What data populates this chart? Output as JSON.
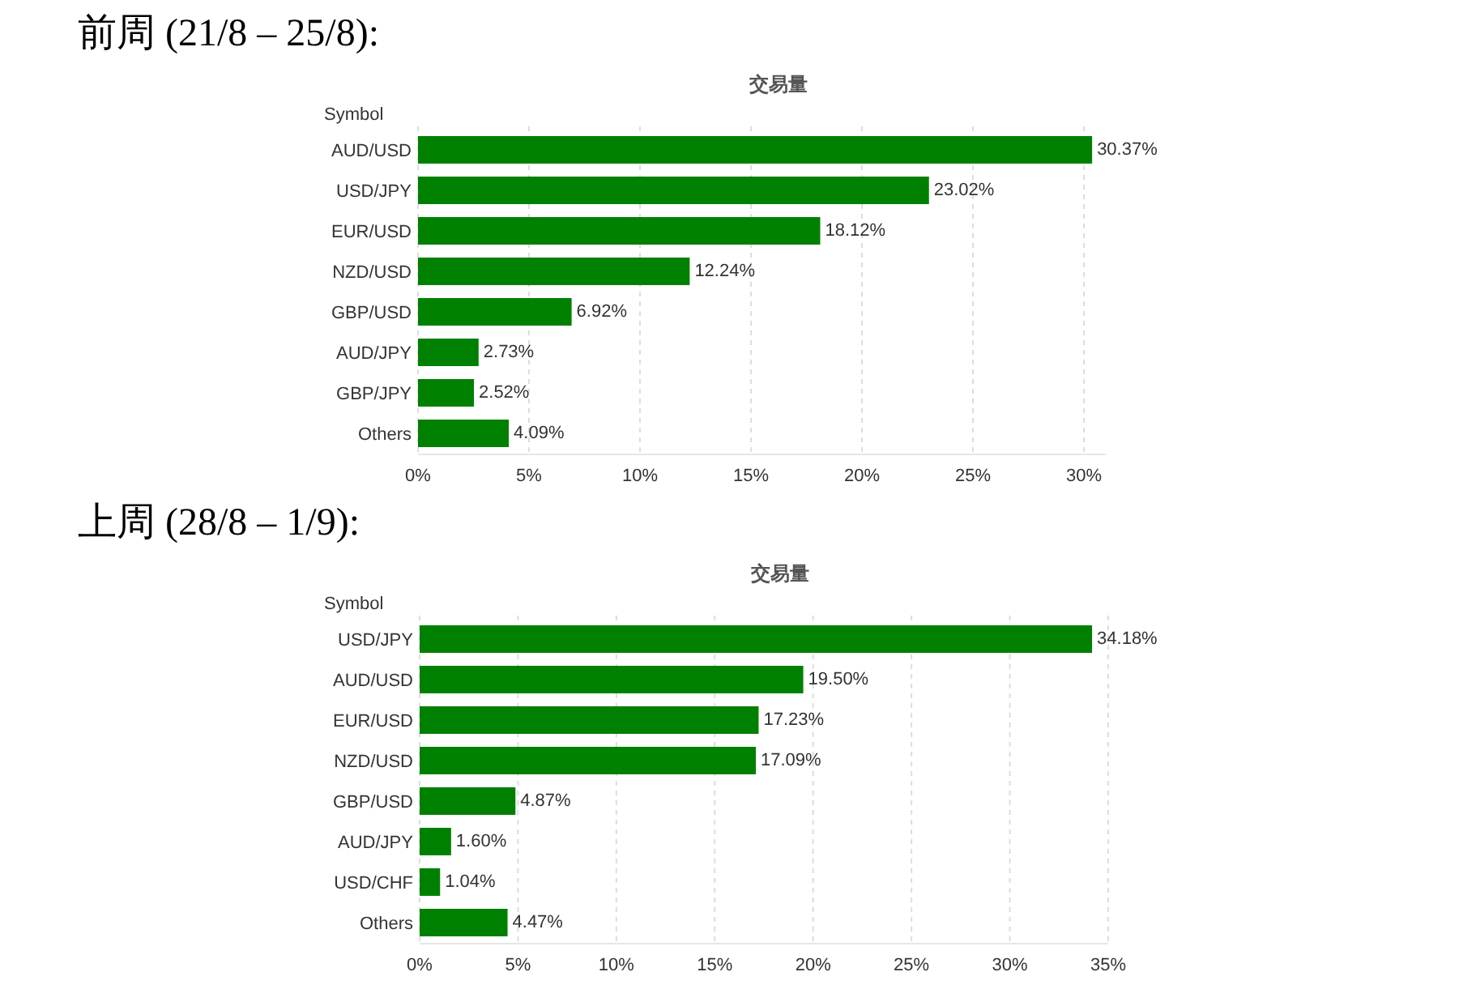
{
  "chart_data": [
    {
      "type": "bar",
      "orientation": "horizontal",
      "title": "前周 (21/8 – 25/8):",
      "subtitle": "交易量",
      "ylabel": "Symbol",
      "categories": [
        "AUD/USD",
        "USD/JPY",
        "EUR/USD",
        "NZD/USD",
        "GBP/USD",
        "AUD/JPY",
        "GBP/JPY",
        "Others"
      ],
      "values": [
        30.37,
        23.02,
        18.12,
        12.24,
        6.92,
        2.73,
        2.52,
        4.09
      ],
      "value_labels": [
        "30.37%",
        "23.02%",
        "18.12%",
        "12.24%",
        "6.92%",
        "2.73%",
        "2.52%",
        "4.09%"
      ],
      "color": "#008000",
      "xlim": [
        0,
        31
      ],
      "xticks": [
        {
          "value": 0,
          "label": "0%"
        },
        {
          "value": 5,
          "label": "5%"
        },
        {
          "value": 10,
          "label": "10%"
        },
        {
          "value": 15,
          "label": "15%"
        },
        {
          "value": 20,
          "label": "20%"
        },
        {
          "value": 25,
          "label": "25%"
        },
        {
          "value": 30,
          "label": "30%"
        }
      ],
      "grid": "x"
    },
    {
      "type": "bar",
      "orientation": "horizontal",
      "title": "上周 (28/8 – 1/9):",
      "subtitle": "交易量",
      "ylabel": "Symbol",
      "categories": [
        "USD/JPY",
        "AUD/USD",
        "EUR/USD",
        "NZD/USD",
        "GBP/USD",
        "AUD/JPY",
        "USD/CHF",
        "Others"
      ],
      "values": [
        34.18,
        19.5,
        17.23,
        17.09,
        4.87,
        1.6,
        1.04,
        4.47
      ],
      "value_labels": [
        "34.18%",
        "19.50%",
        "17.23%",
        "17.09%",
        "4.87%",
        "1.60%",
        "1.04%",
        "4.47%"
      ],
      "color": "#008000",
      "xlim": [
        0,
        35
      ],
      "xticks": [
        {
          "value": 0,
          "label": "0%"
        },
        {
          "value": 5,
          "label": "5%"
        },
        {
          "value": 10,
          "label": "10%"
        },
        {
          "value": 15,
          "label": "15%"
        },
        {
          "value": 20,
          "label": "20%"
        },
        {
          "value": 25,
          "label": "25%"
        },
        {
          "value": 30,
          "label": "30%"
        },
        {
          "value": 35,
          "label": "35%"
        }
      ],
      "grid": "x"
    }
  ]
}
